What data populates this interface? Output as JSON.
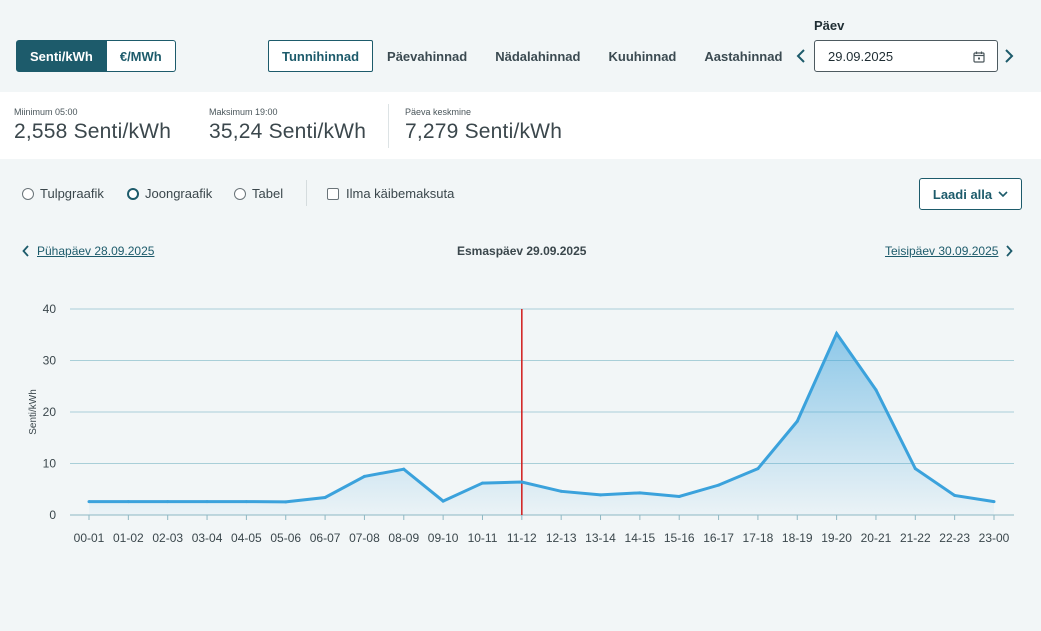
{
  "unit_toggle": {
    "active": "Senti/kWh",
    "inactive": "€/MWh"
  },
  "period_tabs": [
    {
      "label": "Tunnihinnad",
      "active": true
    },
    {
      "label": "Päevahinnad",
      "active": false
    },
    {
      "label": "Nädalahinnad",
      "active": false
    },
    {
      "label": "Kuuhinnad",
      "active": false
    },
    {
      "label": "Aastahinnad",
      "active": false
    }
  ],
  "date_picker": {
    "label": "Päev",
    "value": "29.09.2025"
  },
  "stats": [
    {
      "label": "Miinimum 05:00",
      "value": "2,558 Senti/kWh"
    },
    {
      "label": "Maksimum 19:00",
      "value": "35,24 Senti/kWh"
    },
    {
      "label": "Päeva keskmine",
      "value": "7,279 Senti/kWh"
    }
  ],
  "chart_options": {
    "radios": [
      {
        "label": "Tulpgraafik",
        "checked": false
      },
      {
        "label": "Joongraafik",
        "checked": true
      },
      {
        "label": "Tabel",
        "checked": false
      }
    ],
    "checkbox_label": "Ilma käibemaksuta",
    "download_label": "Laadi alla"
  },
  "day_nav": {
    "prev": "Pühapäev 28.09.2025",
    "current": "Esmaspäev 29.09.2025",
    "next": "Teisipäev 30.09.2025"
  },
  "colors": {
    "primary": "#1d5b6b",
    "line": "#3ba2dc",
    "grid": "#a9cfd8",
    "marker": "#d11a1a"
  },
  "chart_data": {
    "type": "area",
    "title": "",
    "xlabel": "",
    "ylabel": "Senti/kWh",
    "ylim": [
      0,
      40
    ],
    "yticks": [
      0,
      10,
      20,
      30,
      40
    ],
    "grid": true,
    "categories": [
      "00-01",
      "01-02",
      "02-03",
      "03-04",
      "04-05",
      "05-06",
      "06-07",
      "07-08",
      "08-09",
      "09-10",
      "10-11",
      "11-12",
      "12-13",
      "13-14",
      "14-15",
      "15-16",
      "16-17",
      "17-18",
      "18-19",
      "19-20",
      "20-21",
      "21-22",
      "22-23",
      "23-00"
    ],
    "values": [
      2.6,
      2.6,
      2.6,
      2.6,
      2.6,
      2.558,
      3.4,
      7.5,
      8.9,
      2.7,
      6.2,
      6.4,
      4.6,
      3.9,
      4.3,
      3.6,
      5.8,
      9.0,
      18.2,
      35.24,
      24.3,
      9.0,
      3.8,
      2.6
    ],
    "current_marker": "11-12"
  }
}
